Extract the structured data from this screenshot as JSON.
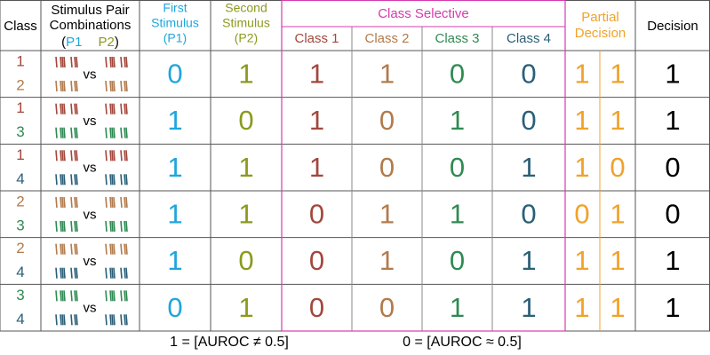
{
  "header": {
    "class": "Class",
    "stimulus": [
      "Stimulus Pair",
      "Combinations"
    ],
    "paren_open": "(",
    "p1": "P1",
    "p2": "P2",
    "paren_close": ")",
    "first": [
      "First",
      "Stimulus",
      "(P1)"
    ],
    "second": [
      "Second",
      "Stimulus",
      "(P2)"
    ],
    "class_selective": "Class Selective",
    "class_names": [
      "Class 1",
      "Class 2",
      "Class 3",
      "Class 4"
    ],
    "partial": [
      "Partial",
      "Decision"
    ],
    "decision": "Decision"
  },
  "colors": {
    "classes": [
      "#a3473c",
      "#b27b4c",
      "#2f8a52",
      "#2a5f78"
    ],
    "first": "#1ea6dc",
    "second": "#8b9a1c",
    "class_selective": "#d43cae",
    "partial": "#f0a22a",
    "decision": "#000000"
  },
  "rows": [
    {
      "classes": [
        1,
        2
      ],
      "vs": "vs",
      "first": 0,
      "second": 1,
      "class_selective": [
        1,
        1,
        0,
        0
      ],
      "partial": [
        1,
        1
      ],
      "decision": 1
    },
    {
      "classes": [
        1,
        3
      ],
      "vs": "vs",
      "first": 1,
      "second": 0,
      "class_selective": [
        1,
        0,
        1,
        0
      ],
      "partial": [
        1,
        1
      ],
      "decision": 1
    },
    {
      "classes": [
        1,
        4
      ],
      "vs": "vs",
      "first": 1,
      "second": 1,
      "class_selective": [
        1,
        0,
        0,
        1
      ],
      "partial": [
        1,
        0
      ],
      "decision": 0
    },
    {
      "classes": [
        2,
        3
      ],
      "vs": "vs",
      "first": 1,
      "second": 1,
      "class_selective": [
        0,
        1,
        1,
        0
      ],
      "partial": [
        0,
        1
      ],
      "decision": 0
    },
    {
      "classes": [
        2,
        4
      ],
      "vs": "vs",
      "first": 1,
      "second": 0,
      "class_selective": [
        0,
        1,
        0,
        1
      ],
      "partial": [
        1,
        1
      ],
      "decision": 1
    },
    {
      "classes": [
        3,
        4
      ],
      "vs": "vs",
      "first": 0,
      "second": 1,
      "class_selective": [
        0,
        0,
        1,
        1
      ],
      "partial": [
        1,
        1
      ],
      "decision": 1
    }
  ],
  "legend": [
    "1 = [AUROC ≠ 0.5]",
    "0 = [AUROC ≈ 0.5]"
  ]
}
